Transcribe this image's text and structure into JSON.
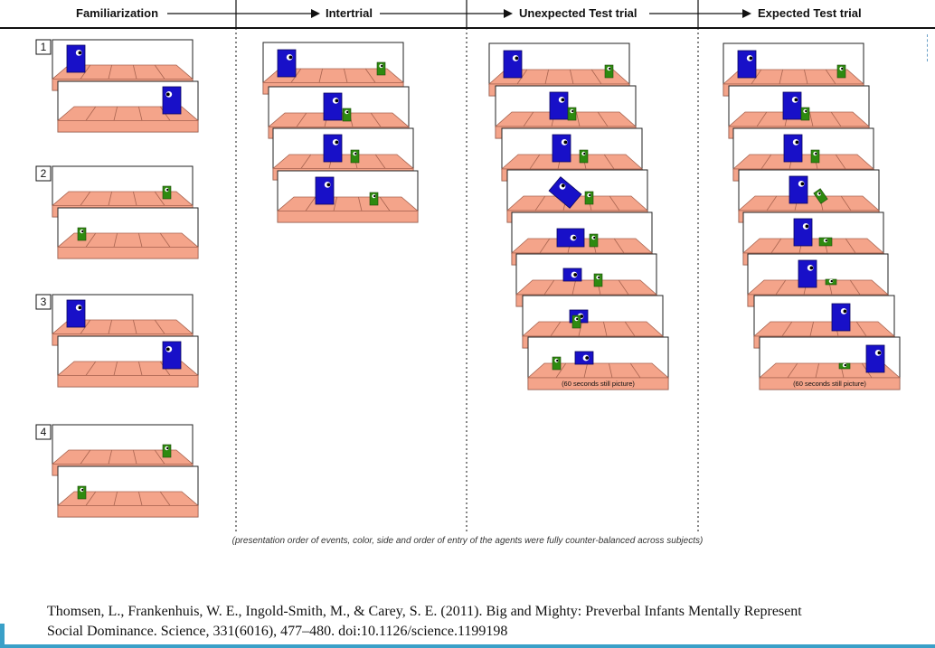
{
  "phases": [
    {
      "label": "Familiarization"
    },
    {
      "label": "Intertrial"
    },
    {
      "label": "Unexpected Test trial"
    },
    {
      "label": "Expected Test trial"
    }
  ],
  "familiarization_numbers": [
    "1",
    "2",
    "3",
    "4"
  ],
  "still_picture_label": "(60 seconds still  picture)",
  "caption": "(presentation order of events, color, side and order of entry of the agents were fully counter-balanced across subjects)",
  "citation_line1": "Thomsen, L., Frankenhuis, W. E., Ingold-Smith, M., & Carey, S. E. (2011). Big and Mighty: Preverbal Infants Mentally Represent",
  "citation_line2": "Social Dominance. Science, 331(6016), 477–480. doi:10.1126/science.1199198",
  "colors": {
    "floor": "#f4a48a",
    "floor_line": "#a86450",
    "big_agent": "#1810c8",
    "small_agent": "#2e8a10",
    "frame": "#222222"
  },
  "icons": [
    "arrow-right-icon",
    "big-agent-icon",
    "small-agent-icon"
  ]
}
